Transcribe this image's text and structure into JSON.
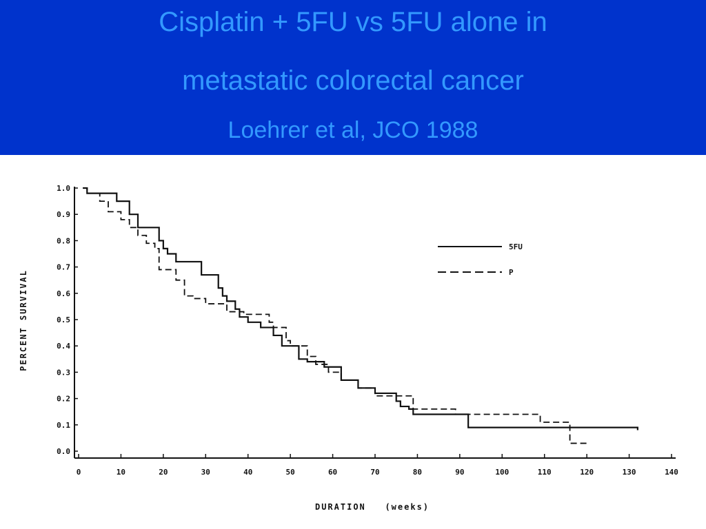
{
  "header": {
    "title_line1": "Cisplatin + 5FU vs 5FU alone in",
    "title_line2": "metastatic colorectal cancer",
    "subtitle": "Loehrer et al, JCO 1988"
  },
  "colors": {
    "header_bg": "#0033cc",
    "header_text": "#3399ff",
    "plot_ink": "#111111"
  },
  "chart_data": {
    "type": "line",
    "title": "",
    "xlabel": "DURATION   (weeks)",
    "ylabel": "PERCENT SURVIVAL",
    "xlim": [
      0,
      140
    ],
    "ylim": [
      0,
      1
    ],
    "x_ticks": [
      0,
      10,
      20,
      30,
      40,
      50,
      60,
      70,
      80,
      90,
      100,
      110,
      120,
      130,
      140
    ],
    "y_ticks": [
      "0.0",
      "0.1",
      "0.2",
      "0.3",
      "0.4",
      "0.5",
      "0.6",
      "0.7",
      "0.8",
      "0.9",
      "1.0"
    ],
    "grid": false,
    "legend_position": "right",
    "step": true,
    "series": [
      {
        "name": "5FU",
        "style": "solid",
        "x": [
          1,
          2,
          9,
          12,
          14,
          19,
          20,
          21,
          23,
          29,
          33,
          34,
          35,
          37,
          38,
          40,
          43,
          46,
          48,
          52,
          54,
          58,
          62,
          66,
          70,
          75,
          76,
          78,
          79,
          92,
          132
        ],
        "y": [
          1.0,
          0.98,
          0.95,
          0.9,
          0.85,
          0.8,
          0.77,
          0.75,
          0.72,
          0.67,
          0.62,
          0.59,
          0.57,
          0.54,
          0.51,
          0.49,
          0.47,
          0.44,
          0.4,
          0.35,
          0.34,
          0.32,
          0.27,
          0.24,
          0.22,
          0.19,
          0.17,
          0.16,
          0.14,
          0.09,
          0.08
        ]
      },
      {
        "name": "P",
        "style": "dashed",
        "x": [
          1,
          2,
          5,
          7,
          10,
          12,
          14,
          16,
          18,
          19,
          23,
          25,
          27,
          30,
          35,
          39,
          45,
          46,
          49,
          50,
          54,
          56,
          59,
          62,
          66,
          70,
          79,
          89,
          109,
          116,
          120
        ],
        "y": [
          1.0,
          0.98,
          0.95,
          0.91,
          0.88,
          0.85,
          0.82,
          0.79,
          0.77,
          0.69,
          0.65,
          0.59,
          0.58,
          0.56,
          0.53,
          0.52,
          0.49,
          0.47,
          0.42,
          0.4,
          0.36,
          0.33,
          0.3,
          0.27,
          0.24,
          0.21,
          0.16,
          0.14,
          0.11,
          0.03,
          0.03
        ]
      }
    ]
  }
}
